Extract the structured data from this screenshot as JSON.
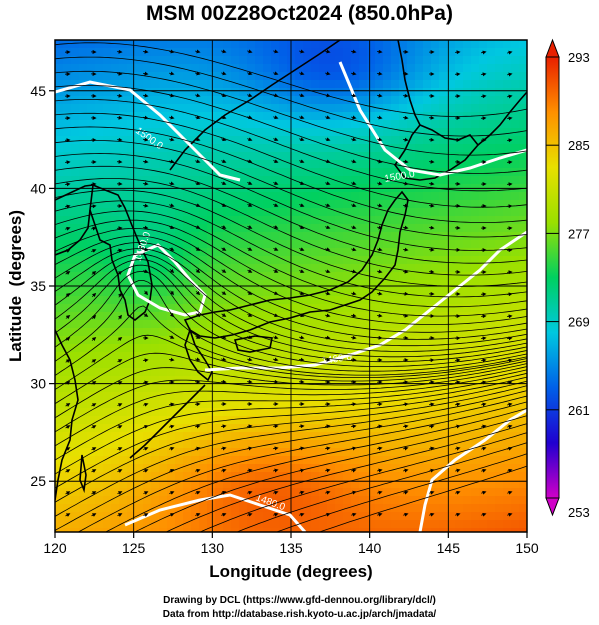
{
  "title": "MSM 00Z28Oct2024 (850.0hPa)",
  "xlabel": "Longitude (degrees)",
  "ylabel": "Latitude  (degrees)",
  "footer": {
    "line1": "Drawing by DCL (https://www.gfd-dennou.org/library/dcl/)",
    "line2": "Data from http://database.rish.kyoto-u.ac.jp/arch/jmadata/"
  },
  "map": {
    "lon_range": [
      120,
      150
    ],
    "lat_range": [
      22.4,
      47.6
    ],
    "lon_ticks": [
      120,
      125,
      130,
      135,
      140,
      145,
      150
    ],
    "lat_ticks": [
      25,
      30,
      35,
      40,
      45
    ],
    "lon_tick_labels": [
      "120",
      "125",
      "130",
      "135",
      "140",
      "145",
      "150"
    ],
    "lat_tick_labels": [
      "25",
      "30",
      "35",
      "40",
      "45"
    ],
    "grid": true,
    "field": "temperature (K), shaded",
    "overlays": [
      "geopotential height contours (white)",
      "streamlines (black)",
      "coastlines"
    ]
  },
  "colorbar": {
    "min": 253,
    "max": 293,
    "tick_values": [
      253,
      261,
      269,
      277,
      285,
      293
    ],
    "tick_labels": [
      "253",
      "261",
      "269",
      "277",
      "285",
      "293"
    ],
    "colors": [
      "#d000c8",
      "#2000d0",
      "#0060e8",
      "#00c8e0",
      "#00d060",
      "#9ae000",
      "#e8e000",
      "#ff9000",
      "#e82000"
    ]
  },
  "contours": [
    {
      "label": "1500.0"
    },
    {
      "label": "1500.0"
    },
    {
      "label": "1460.0"
    },
    {
      "label": "1480.0"
    },
    {
      "label": "1480.0"
    }
  ]
}
